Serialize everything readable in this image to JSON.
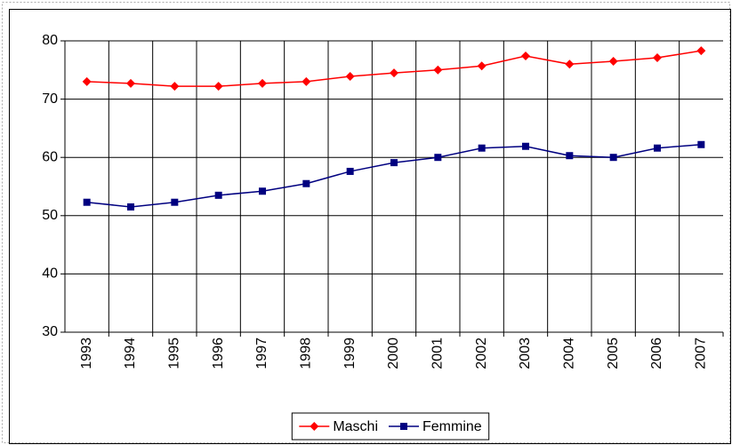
{
  "chart_data": {
    "type": "line",
    "categories": [
      "1993",
      "1994",
      "1995",
      "1996",
      "1997",
      "1998",
      "1999",
      "2000",
      "2001",
      "2002",
      "2003",
      "2004",
      "2005",
      "2006",
      "2007"
    ],
    "series": [
      {
        "name": "Maschi",
        "color": "#ff0000",
        "marker": "diamond",
        "values": [
          73.0,
          72.7,
          72.2,
          72.2,
          72.7,
          73.0,
          73.9,
          74.5,
          75.0,
          75.7,
          77.4,
          76.0,
          76.5,
          77.1,
          78.3
        ]
      },
      {
        "name": "Femmine",
        "color": "#000080",
        "marker": "square",
        "values": [
          52.3,
          51.5,
          52.3,
          53.5,
          54.2,
          55.5,
          57.6,
          59.1,
          60.0,
          61.6,
          61.9,
          60.3,
          60.0,
          61.6,
          62.2
        ]
      }
    ],
    "ylim": [
      30,
      80
    ],
    "yticks": [
      30,
      40,
      50,
      60,
      70,
      80
    ],
    "grid": true,
    "legend": "bottom"
  }
}
